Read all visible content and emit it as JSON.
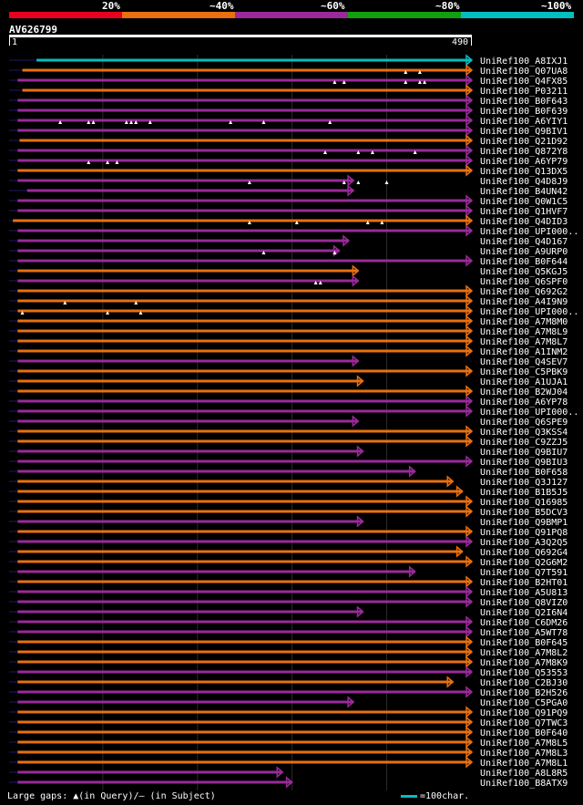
{
  "query": {
    "name": "AV626799",
    "start": "1",
    "end": "490",
    "length": 490
  },
  "legend": {
    "labels": [
      "20%",
      "~40%",
      "~60%",
      "~80%",
      "~100%"
    ],
    "colors": [
      "#e8001e",
      "#e87010",
      "#9a2a9a",
      "#10a010",
      "#00bfc0"
    ]
  },
  "footer": {
    "gaps": "Large gaps: ▲(in Query)/– (in Subject)",
    "scale": "=100char."
  },
  "chart_data": {
    "type": "alignment-overview",
    "x_axis": {
      "min": 1,
      "max": 490,
      "unit": "residue"
    },
    "hits": [
      {
        "name": "UniRef100_A8IXJ1",
        "start": 30,
        "end": 490,
        "color": "cyan",
        "gaps": []
      },
      {
        "name": "UniRef100_Q07UA8",
        "start": 15,
        "end": 490,
        "color": "orange",
        "gaps": [
          420,
          435
        ]
      },
      {
        "name": "UniRef100_Q4FX85",
        "start": 10,
        "end": 490,
        "color": "purple",
        "gaps": [
          345,
          355,
          420,
          435,
          440
        ]
      },
      {
        "name": "UniRef100_P03211",
        "start": 15,
        "end": 490,
        "color": "orange",
        "gaps": []
      },
      {
        "name": "UniRef100_B0F643",
        "start": 10,
        "end": 490,
        "color": "purple",
        "gaps": []
      },
      {
        "name": "UniRef100_B0F639",
        "start": 10,
        "end": 490,
        "color": "purple",
        "gaps": []
      },
      {
        "name": "UniRef100_A6YIY1",
        "start": 10,
        "end": 490,
        "color": "purple",
        "gaps": [
          55,
          85,
          90,
          125,
          130,
          135,
          150,
          235,
          270,
          340
        ]
      },
      {
        "name": "UniRef100_Q9BIV1",
        "start": 10,
        "end": 490,
        "color": "purple",
        "gaps": []
      },
      {
        "name": "UniRef100_Q21D92",
        "start": 12,
        "end": 490,
        "color": "orange",
        "gaps": []
      },
      {
        "name": "UniRef100_Q872Y8",
        "start": 10,
        "end": 490,
        "color": "purple",
        "gaps": [
          335,
          370,
          385,
          430
        ]
      },
      {
        "name": "UniRef100_A6YP79",
        "start": 10,
        "end": 490,
        "color": "purple",
        "gaps": [
          85,
          105,
          115
        ]
      },
      {
        "name": "UniRef100_Q13DX5",
        "start": 10,
        "end": 490,
        "color": "orange",
        "gaps": []
      },
      {
        "name": "UniRef100_Q4D8J9",
        "start": 10,
        "end": 365,
        "color": "purple",
        "gaps": [
          255,
          355,
          370,
          400
        ]
      },
      {
        "name": "UniRef100_B4UN42",
        "start": 20,
        "end": 365,
        "color": "purple",
        "gaps": []
      },
      {
        "name": "UniRef100_Q0W1C5",
        "start": 10,
        "end": 490,
        "color": "purple",
        "gaps": []
      },
      {
        "name": "UniRef100_Q1HVF7",
        "start": 10,
        "end": 490,
        "color": "purple",
        "gaps": []
      },
      {
        "name": "UniRef100_Q4DID3",
        "start": 5,
        "end": 490,
        "color": "orange",
        "gaps": [
          255,
          305,
          380,
          395
        ]
      },
      {
        "name": "UniRef100_UPI000..",
        "start": 10,
        "end": 490,
        "color": "purple",
        "gaps": []
      },
      {
        "name": "UniRef100_Q4D167",
        "start": 10,
        "end": 360,
        "color": "purple",
        "gaps": []
      },
      {
        "name": "UniRef100_A9URP0",
        "start": 10,
        "end": 350,
        "color": "purple",
        "gaps": [
          270,
          345
        ]
      },
      {
        "name": "UniRef100_B0F644",
        "start": 10,
        "end": 490,
        "color": "purple",
        "gaps": []
      },
      {
        "name": "UniRef100_Q5KGJ5",
        "start": 10,
        "end": 370,
        "color": "orange",
        "gaps": []
      },
      {
        "name": "UniRef100_Q6SPF0",
        "start": 10,
        "end": 370,
        "color": "purple",
        "gaps": [
          325,
          330
        ]
      },
      {
        "name": "UniRef100_Q692G2",
        "start": 10,
        "end": 490,
        "color": "orange",
        "gaps": []
      },
      {
        "name": "UniRef100_A4I9N9",
        "start": 10,
        "end": 490,
        "color": "orange",
        "gaps": [
          60,
          135
        ]
      },
      {
        "name": "UniRef100_UPI000..",
        "start": 10,
        "end": 490,
        "color": "orange",
        "gaps": [
          15,
          105,
          140
        ]
      },
      {
        "name": "UniRef100_A7M8M0",
        "start": 10,
        "end": 490,
        "color": "orange",
        "gaps": []
      },
      {
        "name": "UniRef100_A7M8L9",
        "start": 10,
        "end": 490,
        "color": "orange",
        "gaps": []
      },
      {
        "name": "UniRef100_A7M8L7",
        "start": 10,
        "end": 490,
        "color": "orange",
        "gaps": []
      },
      {
        "name": "UniRef100_A1INM2",
        "start": 10,
        "end": 490,
        "color": "orange",
        "gaps": []
      },
      {
        "name": "UniRef100_Q4SEV7",
        "start": 10,
        "end": 370,
        "color": "purple",
        "gaps": []
      },
      {
        "name": "UniRef100_C5PBK9",
        "start": 10,
        "end": 490,
        "color": "orange",
        "gaps": []
      },
      {
        "name": "UniRef100_A1UJA1",
        "start": 10,
        "end": 375,
        "color": "orange",
        "gaps": []
      },
      {
        "name": "UniRef100_B2WJ04",
        "start": 10,
        "end": 490,
        "color": "orange",
        "gaps": []
      },
      {
        "name": "UniRef100_A6YP78",
        "start": 10,
        "end": 490,
        "color": "purple",
        "gaps": []
      },
      {
        "name": "UniRef100_UPI000..",
        "start": 10,
        "end": 490,
        "color": "purple",
        "gaps": []
      },
      {
        "name": "UniRef100_Q6SPE9",
        "start": 10,
        "end": 370,
        "color": "purple",
        "gaps": []
      },
      {
        "name": "UniRef100_Q3KSS4",
        "start": 10,
        "end": 490,
        "color": "orange",
        "gaps": []
      },
      {
        "name": "UniRef100_C9ZZJ5",
        "start": 10,
        "end": 490,
        "color": "orange",
        "gaps": []
      },
      {
        "name": "UniRef100_Q9BIU7",
        "start": 10,
        "end": 375,
        "color": "purple",
        "gaps": []
      },
      {
        "name": "UniRef100_Q9BIU3",
        "start": 10,
        "end": 490,
        "color": "purple",
        "gaps": []
      },
      {
        "name": "UniRef100_B0F658",
        "start": 10,
        "end": 430,
        "color": "purple",
        "gaps": []
      },
      {
        "name": "UniRef100_Q3J127",
        "start": 10,
        "end": 470,
        "color": "orange",
        "gaps": []
      },
      {
        "name": "UniRef100_B1B5J5",
        "start": 10,
        "end": 480,
        "color": "orange",
        "gaps": []
      },
      {
        "name": "UniRef100_Q16985",
        "start": 10,
        "end": 490,
        "color": "orange",
        "gaps": []
      },
      {
        "name": "UniRef100_B5DCV3",
        "start": 10,
        "end": 490,
        "color": "orange",
        "gaps": []
      },
      {
        "name": "UniRef100_Q9BMP1",
        "start": 10,
        "end": 375,
        "color": "purple",
        "gaps": []
      },
      {
        "name": "UniRef100_Q91PQ8",
        "start": 10,
        "end": 490,
        "color": "orange",
        "gaps": []
      },
      {
        "name": "UniRef100_A3Q2Q5",
        "start": 10,
        "end": 490,
        "color": "purple",
        "gaps": []
      },
      {
        "name": "UniRef100_Q692G4",
        "start": 10,
        "end": 480,
        "color": "orange",
        "gaps": []
      },
      {
        "name": "UniRef100_Q2G6M2",
        "start": 10,
        "end": 490,
        "color": "orange",
        "gaps": []
      },
      {
        "name": "UniRef100_Q7T591",
        "start": 10,
        "end": 430,
        "color": "purple",
        "gaps": []
      },
      {
        "name": "UniRef100_B2HT01",
        "start": 10,
        "end": 490,
        "color": "orange",
        "gaps": []
      },
      {
        "name": "UniRef100_A5U813",
        "start": 10,
        "end": 490,
        "color": "purple",
        "gaps": []
      },
      {
        "name": "UniRef100_Q8VIZ0",
        "start": 10,
        "end": 490,
        "color": "purple",
        "gaps": []
      },
      {
        "name": "UniRef100_Q2I6N4",
        "start": 10,
        "end": 375,
        "color": "purple",
        "gaps": []
      },
      {
        "name": "UniRef100_C6DM26",
        "start": 10,
        "end": 490,
        "color": "purple",
        "gaps": []
      },
      {
        "name": "UniRef100_A5WT78",
        "start": 10,
        "end": 490,
        "color": "purple",
        "gaps": []
      },
      {
        "name": "UniRef100_B0F645",
        "start": 10,
        "end": 490,
        "color": "orange",
        "gaps": []
      },
      {
        "name": "UniRef100_A7M8L2",
        "start": 10,
        "end": 490,
        "color": "orange",
        "gaps": []
      },
      {
        "name": "UniRef100_A7M8K9",
        "start": 10,
        "end": 490,
        "color": "orange",
        "gaps": []
      },
      {
        "name": "UniRef100_Q53553",
        "start": 10,
        "end": 490,
        "color": "purple",
        "gaps": []
      },
      {
        "name": "UniRef100_C2BJ30",
        "start": 10,
        "end": 470,
        "color": "orange",
        "gaps": []
      },
      {
        "name": "UniRef100_B2H526",
        "start": 10,
        "end": 490,
        "color": "purple",
        "gaps": []
      },
      {
        "name": "UniRef100_C5PGA0",
        "start": 10,
        "end": 365,
        "color": "purple",
        "gaps": []
      },
      {
        "name": "UniRef100_Q91PQ9",
        "start": 10,
        "end": 490,
        "color": "orange",
        "gaps": []
      },
      {
        "name": "UniRef100_Q7TWC3",
        "start": 10,
        "end": 490,
        "color": "orange",
        "gaps": []
      },
      {
        "name": "UniRef100_B0F640",
        "start": 10,
        "end": 490,
        "color": "orange",
        "gaps": []
      },
      {
        "name": "UniRef100_A7M8L5",
        "start": 10,
        "end": 490,
        "color": "orange",
        "gaps": []
      },
      {
        "name": "UniRef100_A7M8L3",
        "start": 10,
        "end": 490,
        "color": "orange",
        "gaps": []
      },
      {
        "name": "UniRef100_A7M8L1",
        "start": 10,
        "end": 490,
        "color": "orange",
        "gaps": []
      },
      {
        "name": "UniRef100_A8L8R5",
        "start": 10,
        "end": 290,
        "color": "purple",
        "gaps": []
      },
      {
        "name": "UniRef100_B8ATX9",
        "start": 10,
        "end": 300,
        "color": "purple",
        "gaps": []
      }
    ]
  }
}
